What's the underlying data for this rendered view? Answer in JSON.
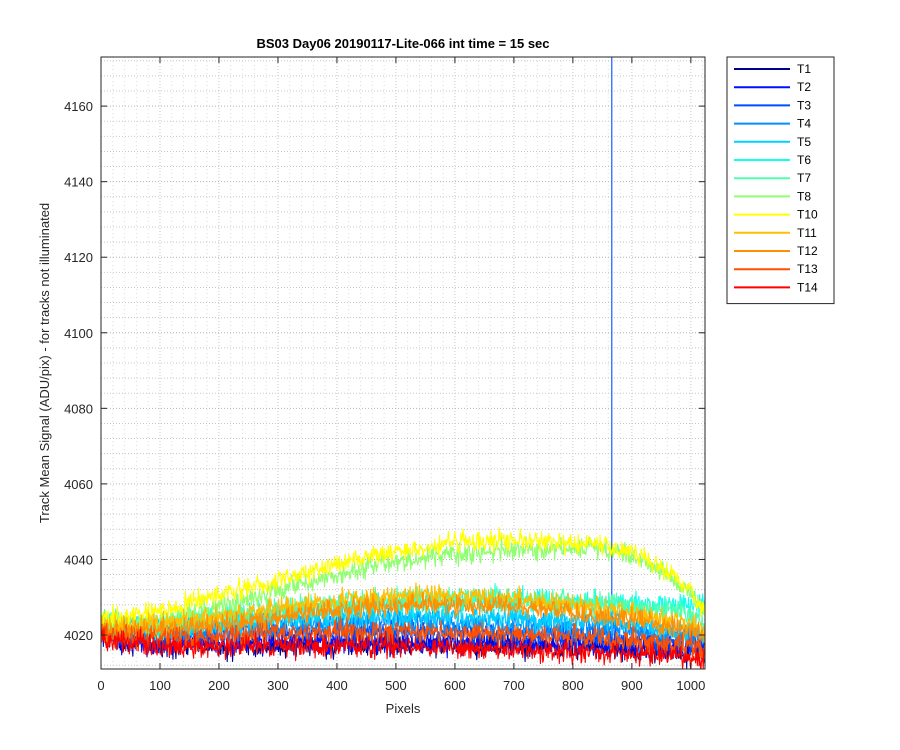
{
  "chart_data": {
    "type": "line",
    "title": "BS03 Day06 20190117-Lite-066 int time = 15 sec",
    "xlabel": "Pixels",
    "ylabel": "Track Mean Signal (ADU/pix) - for tracks not illuminated",
    "xlim": [
      0,
      1024
    ],
    "ylim": [
      4011,
      4173
    ],
    "xticks": [
      0,
      100,
      200,
      300,
      400,
      500,
      600,
      700,
      800,
      900,
      1000
    ],
    "yticks": [
      4020,
      4040,
      4060,
      4080,
      4100,
      4120,
      4140,
      4160
    ],
    "grid": "on",
    "legend_position": "outside-right-top",
    "series": [
      {
        "name": "T1",
        "color": "#00008f",
        "x": [
          0,
          100,
          200,
          300,
          400,
          500,
          600,
          700,
          800,
          900,
          1000,
          1024
        ],
        "y": [
          4020,
          4017,
          4017,
          4017,
          4017,
          4017.5,
          4017.5,
          4017,
          4017,
          4016,
          4015,
          4015
        ],
        "noise": 1.5
      },
      {
        "name": "T2",
        "color": "#0010ff",
        "x": [
          0,
          100,
          200,
          300,
          400,
          500,
          600,
          700,
          800,
          900,
          1000,
          1024
        ],
        "y": [
          4019,
          4018,
          4018,
          4018,
          4018,
          4018,
          4018,
          4018,
          4018,
          4017,
          4016,
          4016
        ],
        "noise": 1.5
      },
      {
        "name": "T3",
        "color": "#004fff",
        "x": [
          0,
          100,
          200,
          300,
          400,
          500,
          600,
          700,
          800,
          900,
          1000,
          1024
        ],
        "y": [
          4021,
          4019,
          4020,
          4021,
          4021,
          4021,
          4021,
          4020,
          4020,
          4019,
          4018,
          4018
        ],
        "noise": 1.6,
        "spike": {
          "x": 866,
          "y_from": 4028,
          "y_to": 4173
        }
      },
      {
        "name": "T4",
        "color": "#008fff",
        "x": [
          0,
          100,
          200,
          300,
          400,
          500,
          600,
          700,
          800,
          900,
          1000,
          1024
        ],
        "y": [
          4021,
          4021,
          4022,
          4023,
          4023.5,
          4023.5,
          4023,
          4022.5,
          4022,
          4021,
          4019.5,
          4019
        ],
        "noise": 1.6
      },
      {
        "name": "T5",
        "color": "#00cfff",
        "x": [
          0,
          100,
          200,
          300,
          400,
          500,
          600,
          700,
          800,
          900,
          1000,
          1024
        ],
        "y": [
          4022,
          4022,
          4023,
          4024,
          4025,
          4025,
          4025,
          4024.5,
          4024,
          4023,
          4021,
          4020
        ],
        "noise": 1.6
      },
      {
        "name": "T6",
        "color": "#10ffef",
        "x": [
          0,
          100,
          200,
          300,
          400,
          500,
          600,
          700,
          800,
          900,
          1000,
          1024
        ],
        "y": [
          4022,
          4022,
          4024,
          4026,
          4027,
          4028,
          4029,
          4029,
          4028.5,
          4028,
          4028,
          4028
        ],
        "noise": 1.6
      },
      {
        "name": "T7",
        "color": "#50ffaf",
        "x": [
          0,
          100,
          200,
          300,
          400,
          500,
          600,
          700,
          800,
          900,
          1000,
          1024
        ],
        "y": [
          4023,
          4023,
          4025,
          4027,
          4028.5,
          4029.5,
          4030,
          4029.5,
          4029,
          4028,
          4025,
          4024
        ],
        "noise": 1.5
      },
      {
        "name": "T8",
        "color": "#8fff70",
        "x": [
          0,
          100,
          200,
          300,
          400,
          500,
          600,
          700,
          800,
          850,
          900,
          950,
          1000,
          1024
        ],
        "y": [
          4022,
          4024,
          4027.5,
          4032,
          4036,
          4039.5,
          4041.5,
          4042.5,
          4043,
          4043,
          4041,
          4037,
          4031,
          4026
        ],
        "noise": 1.3
      },
      {
        "name": "T10",
        "color": "#ffff00",
        "x": [
          0,
          100,
          200,
          300,
          400,
          500,
          600,
          700,
          800,
          850,
          900,
          950,
          1000,
          1024
        ],
        "y": [
          4024,
          4026.5,
          4030.5,
          4034.5,
          4038.5,
          4042,
          4044.5,
          4045,
          4044.5,
          4044,
          4042,
          4038,
          4032,
          4026
        ],
        "noise": 1.3
      },
      {
        "name": "T11",
        "color": "#ffbf00",
        "x": [
          0,
          100,
          200,
          300,
          400,
          500,
          600,
          700,
          800,
          900,
          1000,
          1024
        ],
        "y": [
          4022,
          4023,
          4025,
          4027,
          4029,
          4030.5,
          4030.5,
          4029.5,
          4028,
          4026,
          4023,
          4021
        ],
        "noise": 1.4
      },
      {
        "name": "T12",
        "color": "#ff8f00",
        "x": [
          0,
          100,
          200,
          300,
          400,
          500,
          600,
          700,
          800,
          900,
          1000,
          1024
        ],
        "y": [
          4021,
          4021.5,
          4023,
          4025,
          4027,
          4028,
          4028,
          4027.5,
          4026,
          4024,
          4021,
          4020
        ],
        "noise": 1.4
      },
      {
        "name": "T13",
        "color": "#ff5000",
        "x": [
          0,
          100,
          200,
          300,
          400,
          500,
          600,
          700,
          800,
          900,
          1000,
          1024
        ],
        "y": [
          4020,
          4019,
          4019.5,
          4020.5,
          4021,
          4021,
          4020.5,
          4020,
          4019.5,
          4018.5,
          4017,
          4016
        ],
        "noise": 1.5
      },
      {
        "name": "T14",
        "color": "#ff0000",
        "x": [
          0,
          100,
          200,
          300,
          400,
          500,
          600,
          700,
          800,
          900,
          1000,
          1024
        ],
        "y": [
          4019,
          4017,
          4016.5,
          4017,
          4017,
          4017,
          4016.5,
          4016,
          4015.5,
          4015,
          4014,
          4013
        ],
        "noise": 1.4
      }
    ]
  }
}
